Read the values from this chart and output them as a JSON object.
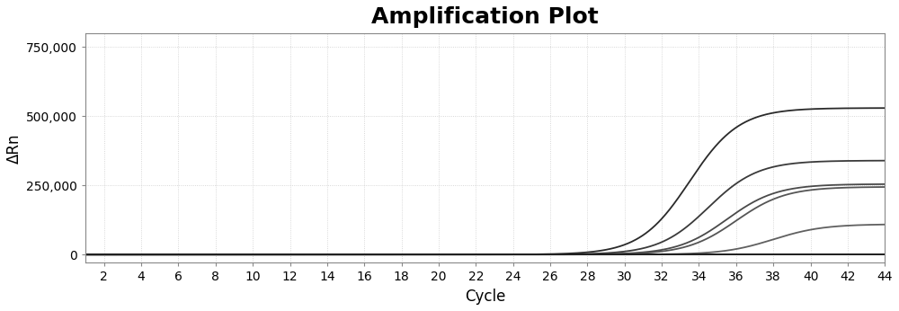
{
  "title": "Amplification Plot",
  "xlabel": "Cycle",
  "ylabel": "ΔRn",
  "xlim": [
    1,
    44
  ],
  "ylim": [
    -30000,
    800000
  ],
  "yticks": [
    0,
    250000,
    500000,
    750000
  ],
  "ytick_labels": [
    "0",
    "250,000",
    "500,000",
    "750,000"
  ],
  "xticks": [
    2,
    4,
    6,
    8,
    10,
    12,
    14,
    16,
    18,
    20,
    22,
    24,
    26,
    28,
    30,
    32,
    34,
    36,
    38,
    40,
    42,
    44
  ],
  "background_color": "#ffffff",
  "plot_bg_color": "#ffffff",
  "grid_color": "#cccccc",
  "curves": [
    {
      "color": "#2a2a2a",
      "plateau": 530000,
      "midpoint": 33.5,
      "k": 0.75
    },
    {
      "color": "#3a3a3a",
      "plateau": 340000,
      "midpoint": 34.5,
      "k": 0.75
    },
    {
      "color": "#4a4a4a",
      "plateau": 255000,
      "midpoint": 35.5,
      "k": 0.75
    },
    {
      "color": "#555555",
      "plateau": 245000,
      "midpoint": 36.0,
      "k": 0.75
    },
    {
      "color": "#606060",
      "plateau": 110000,
      "midpoint": 38.0,
      "k": 0.75
    },
    {
      "color": "#111111",
      "plateau": 5000,
      "midpoint": 55.0,
      "k": 0.75
    },
    {
      "color": "#222222",
      "plateau": 3000,
      "midpoint": 55.0,
      "k": 0.75
    }
  ],
  "title_fontsize": 18,
  "label_fontsize": 12,
  "tick_fontsize": 10,
  "linewidth": 1.3
}
